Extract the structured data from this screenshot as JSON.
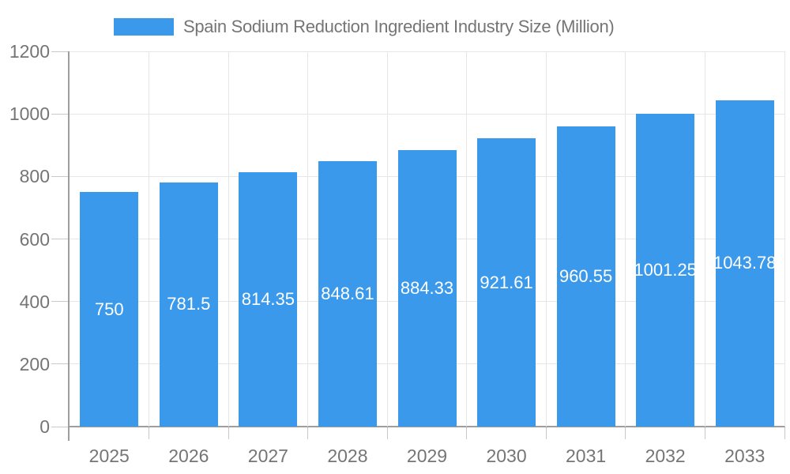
{
  "chart_data": {
    "type": "bar",
    "title": "Spain Sodium Reduction Ingredient Industry Size (Million)",
    "categories": [
      "2025",
      "2026",
      "2027",
      "2028",
      "2029",
      "2030",
      "2031",
      "2032",
      "2033"
    ],
    "values": [
      750,
      781.5,
      814.35,
      848.61,
      884.33,
      921.61,
      960.55,
      1001.25,
      1043.78
    ],
    "value_labels": [
      "750",
      "781.5",
      "814.35",
      "848.61",
      "884.33",
      "921.61",
      "960.55",
      "1001.25",
      "1043.78"
    ],
    "xlabel": "",
    "ylabel": "",
    "ylim": [
      0,
      1200
    ],
    "y_ticks": [
      0,
      200,
      400,
      600,
      800,
      1000,
      1200
    ],
    "grid": true,
    "legend_position": "top",
    "colors": {
      "bar": "#3B99EC",
      "bar_label": "#FFFFFF",
      "axis_text": "#757575",
      "gridline": "#E6E6E6",
      "axis_line": "#9E9E9E",
      "tick": "#C9C9C9",
      "background": "#FFFFFF"
    }
  }
}
